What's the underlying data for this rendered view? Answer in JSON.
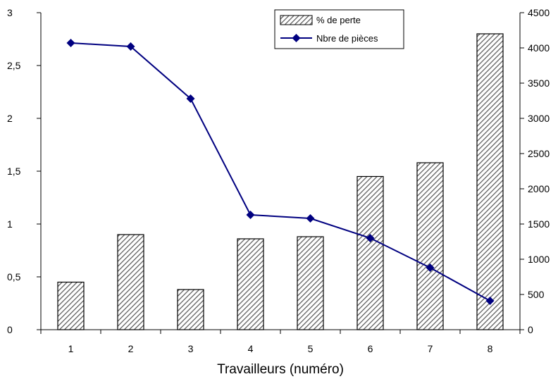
{
  "chart_data": {
    "type": "bar",
    "categories": [
      "1",
      "2",
      "3",
      "4",
      "5",
      "6",
      "7",
      "8"
    ],
    "series": [
      {
        "name": "% de perte",
        "type": "bar",
        "axis": "left",
        "values": [
          0.45,
          0.9,
          0.38,
          0.86,
          0.88,
          1.45,
          1.58,
          2.8
        ],
        "fill": "hatched"
      },
      {
        "name": "Nbre de pièces",
        "type": "line",
        "axis": "right",
        "values": [
          4070,
          4020,
          3280,
          1630,
          1580,
          1300,
          880,
          410
        ],
        "marker": "diamond"
      }
    ],
    "xlabel": "Travailleurs (numéro)",
    "ylabel": "",
    "ylabel_right": "",
    "ylim": [
      0,
      3
    ],
    "ylim_right": [
      0,
      4500
    ],
    "y_ticks": [
      "0",
      "0,5",
      "1",
      "1,5",
      "2",
      "2,5",
      "3"
    ],
    "y_ticks_right": [
      "0",
      "500",
      "1000",
      "1500",
      "2000",
      "2500",
      "3000",
      "3500",
      "4000",
      "4500"
    ],
    "grid": false,
    "legend": "top-right",
    "colors": {
      "line": "#000080",
      "bar_stroke": "#000000",
      "axis": "#000000"
    }
  }
}
